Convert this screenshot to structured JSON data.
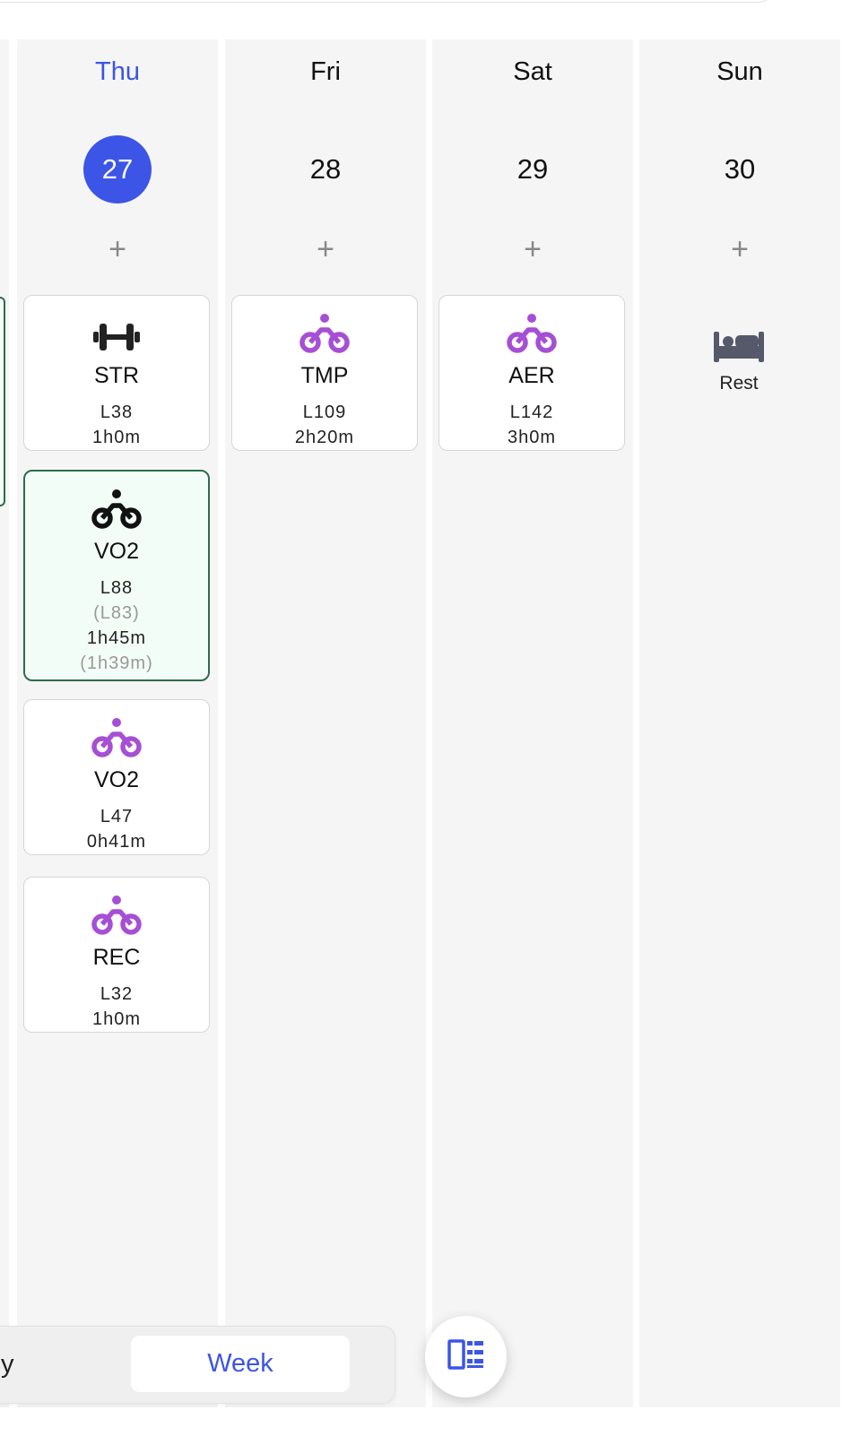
{
  "colors": {
    "accent": "#3c55e6",
    "bike_purple": "#a64fd6",
    "dark_icon": "#222222",
    "completed_border": "#2f6b4e",
    "column_bg": "#f5f5f5"
  },
  "days": [
    {
      "name": "Thu",
      "number": "27",
      "today": true,
      "add_label": "+",
      "workouts": [
        {
          "icon": "dumbbell-icon",
          "type": "STR",
          "load": "L38",
          "duration": "1h0m"
        },
        {
          "icon": "bike-icon-dark",
          "type": "VO2",
          "load": "L88",
          "load_actual": "(L83)",
          "duration": "1h45m",
          "duration_actual": "(1h39m)",
          "completed": true
        },
        {
          "icon": "bike-icon",
          "type": "VO2",
          "load": "L47",
          "duration": "0h41m"
        },
        {
          "icon": "bike-icon",
          "type": "REC",
          "load": "L32",
          "duration": "1h0m"
        }
      ]
    },
    {
      "name": "Fri",
      "number": "28",
      "add_label": "+",
      "workouts": [
        {
          "icon": "bike-icon",
          "type": "TMP",
          "load": "L109",
          "duration": "2h20m"
        }
      ]
    },
    {
      "name": "Sat",
      "number": "29",
      "add_label": "+",
      "workouts": [
        {
          "icon": "bike-icon",
          "type": "AER",
          "load": "L142",
          "duration": "3h0m"
        }
      ]
    },
    {
      "name": "Sun",
      "number": "30",
      "add_label": "+",
      "rest": {
        "icon": "bed-icon",
        "label": "Rest"
      }
    }
  ],
  "view_toggle": {
    "left_partial": "y",
    "week": "Week"
  },
  "fab": {
    "icon": "layout-toggle-icon"
  }
}
